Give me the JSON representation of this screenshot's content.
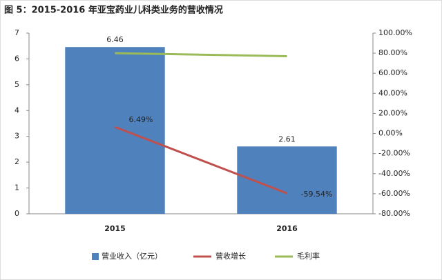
{
  "chart_data": {
    "type": "combo",
    "title": "图 5：2015-2016 年亚宝药业儿科类业务的营收情况",
    "categories": [
      "2015",
      "2016"
    ],
    "ylim": [
      0,
      7
    ],
    "yticks": [
      0,
      1,
      2,
      3,
      4,
      5,
      6,
      7
    ],
    "y2lim": [
      -80,
      100
    ],
    "y2ticks": [
      {
        "value": -80,
        "label": "-80.00%"
      },
      {
        "value": -60,
        "label": "-60.00%"
      },
      {
        "value": -40,
        "label": "-40.00%"
      },
      {
        "value": -20,
        "label": "-20.00%"
      },
      {
        "value": 0,
        "label": "0.00%"
      },
      {
        "value": 20,
        "label": "20.00%"
      },
      {
        "value": 40,
        "label": "40.00%"
      },
      {
        "value": 60,
        "label": "60.00%"
      },
      {
        "value": 80,
        "label": "80.00%"
      },
      {
        "value": 100,
        "label": "100.00%"
      }
    ],
    "legend": "bottom",
    "series": [
      {
        "name": "营业收入（亿元）",
        "type": "bar",
        "color": "#4f81bd",
        "values": [
          6.46,
          2.61
        ]
      },
      {
        "name": "营收增长",
        "type": "line",
        "axis": "y2",
        "color": "#c0504d",
        "values": [
          6.49,
          -59.54
        ],
        "value_labels": [
          "6.49%",
          "-59.54%"
        ]
      },
      {
        "name": "毛利率",
        "type": "line",
        "axis": "y2",
        "color": "#9bbb59",
        "values": [
          80,
          77
        ]
      }
    ]
  }
}
